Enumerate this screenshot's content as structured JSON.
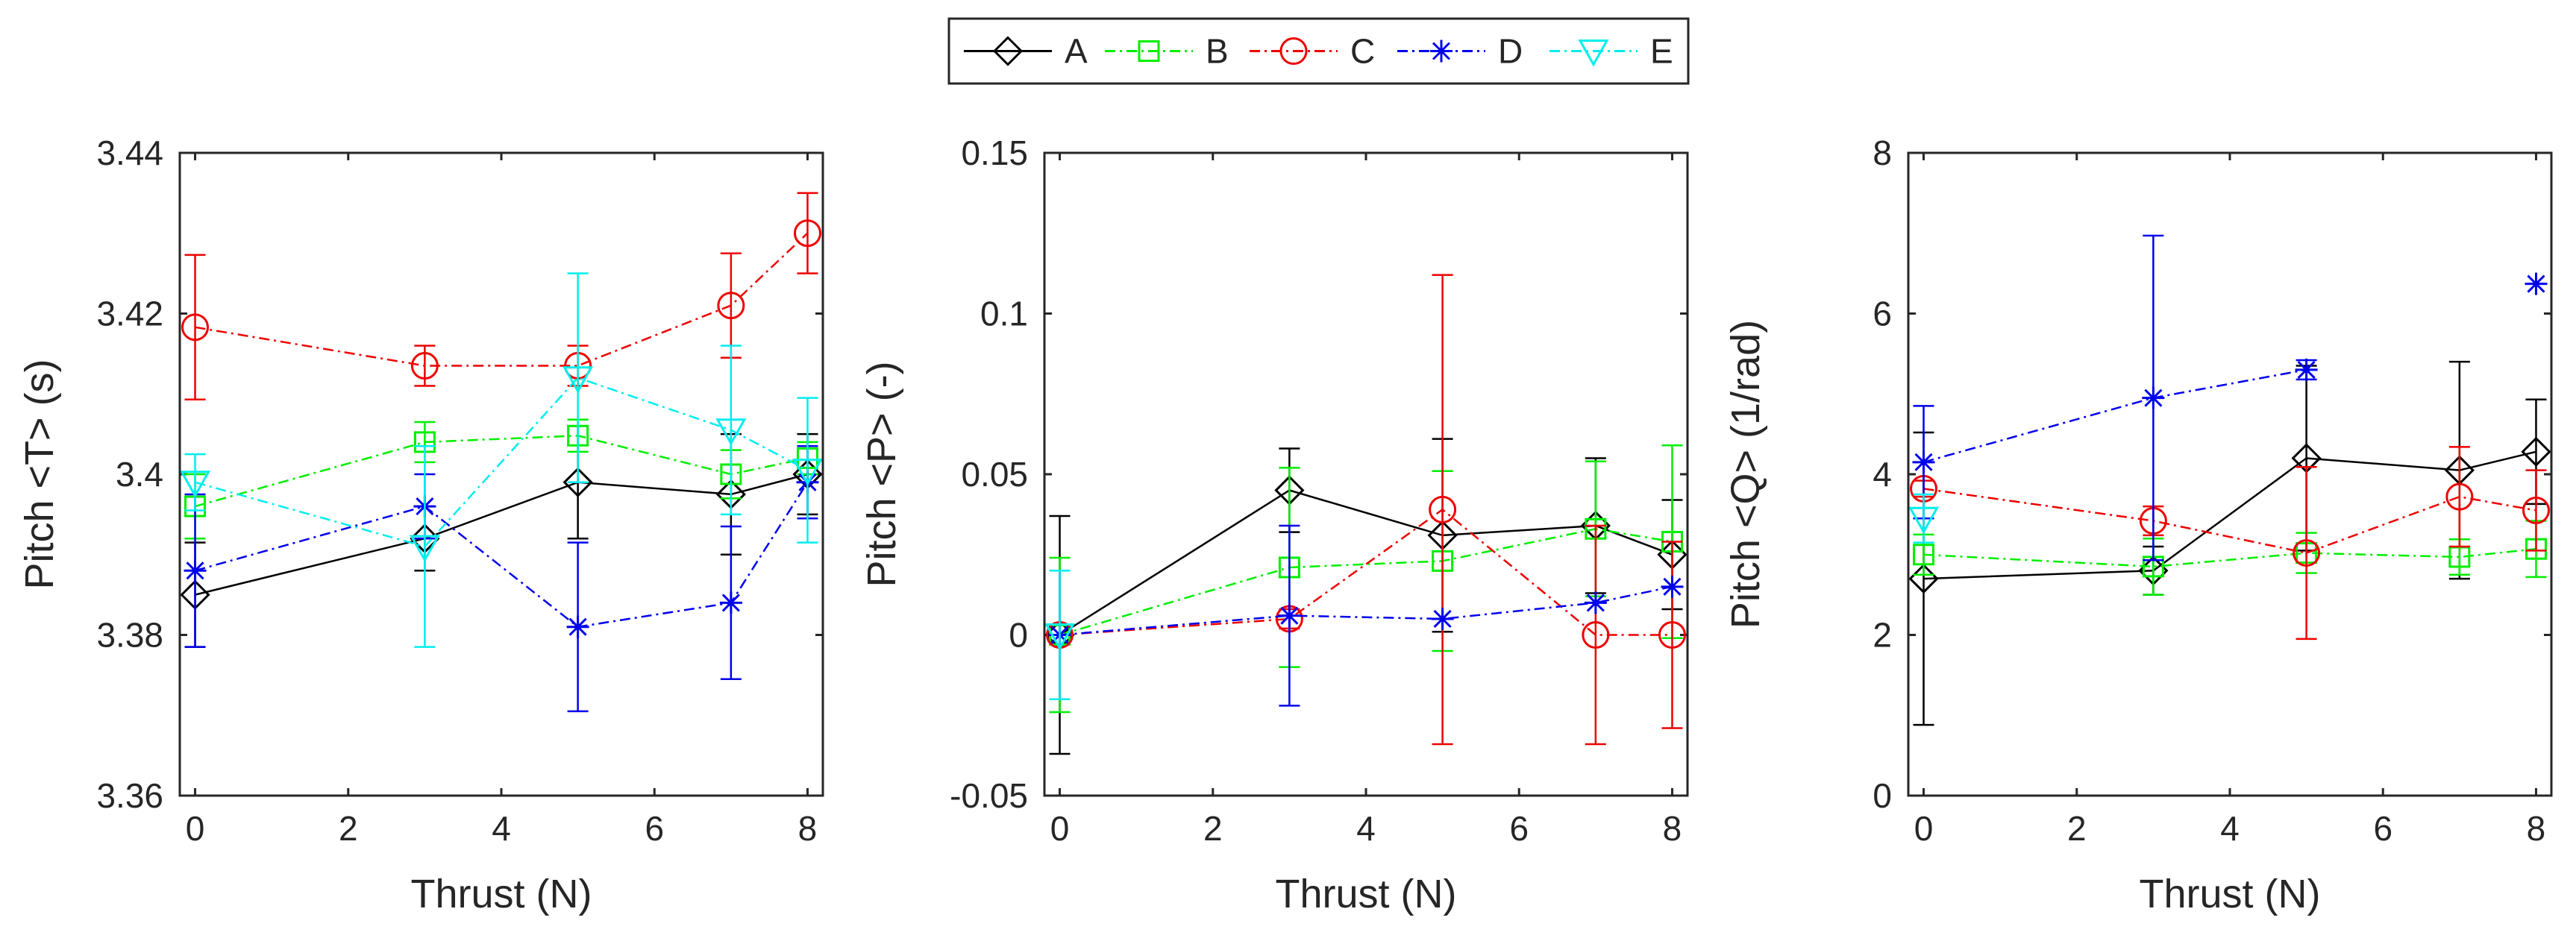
{
  "legend": {
    "entries": [
      {
        "name": "A",
        "color": "#000000",
        "marker": "diamond",
        "dash": "solid"
      },
      {
        "name": "B",
        "color": "#00ee00",
        "marker": "square",
        "dash": "dashdot"
      },
      {
        "name": "C",
        "color": "#ee0000",
        "marker": "circle",
        "dash": "dashdot"
      },
      {
        "name": "D",
        "color": "#0000ee",
        "marker": "asterisk",
        "dash": "dashdot"
      },
      {
        "name": "E",
        "color": "#00eeee",
        "marker": "triangle-down",
        "dash": "dashdot"
      }
    ]
  },
  "chart_data": [
    {
      "type": "line",
      "title": "",
      "xlabel": "Thrust (N)",
      "ylabel": "Pitch <T> (s)",
      "xlim": [
        -0.2,
        8.2
      ],
      "ylim": [
        3.36,
        3.44
      ],
      "xticks": [
        "0",
        "2",
        "4",
        "6",
        "8"
      ],
      "yticks": [
        "3.36",
        "3.38",
        "3.4",
        "3.42",
        "3.44"
      ],
      "series": [
        {
          "name": "A",
          "x": [
            0,
            3,
            5,
            7,
            8
          ],
          "values": [
            3.385,
            3.392,
            3.399,
            3.3975,
            3.4
          ],
          "err": [
            0.0065,
            0.004,
            0.007,
            0.0075,
            0.005
          ]
        },
        {
          "name": "B",
          "x": [
            0,
            3,
            5,
            7,
            8
          ],
          "values": [
            3.396,
            3.404,
            3.4048,
            3.4,
            3.402
          ],
          "err": [
            0.004,
            0.0025,
            0.002,
            0.003,
            0.002
          ]
        },
        {
          "name": "C",
          "x": [
            0,
            3,
            5,
            7,
            8
          ],
          "values": [
            3.4183,
            3.4135,
            3.4135,
            3.421,
            3.43
          ],
          "err": [
            0.009,
            0.0025,
            0.0025,
            0.0065,
            0.005
          ]
        },
        {
          "name": "D",
          "x": [
            0,
            3,
            5,
            7,
            8
          ],
          "values": [
            3.388,
            3.396,
            3.381,
            3.384,
            3.399
          ],
          "err": [
            0.0095,
            0.004,
            0.0105,
            0.0095,
            0.0045
          ]
        },
        {
          "name": "E",
          "x": [
            0,
            3,
            5,
            7,
            8
          ],
          "values": [
            3.399,
            3.391,
            3.412,
            3.4055,
            3.4005
          ],
          "err": [
            0.0035,
            0.0125,
            0.013,
            0.0105,
            0.009
          ]
        }
      ]
    },
    {
      "type": "line",
      "title": "",
      "xlabel": "Thrust (N)",
      "ylabel": "Pitch <P> (-)",
      "xlim": [
        -0.2,
        8.2
      ],
      "ylim": [
        -0.05,
        0.15
      ],
      "xticks": [
        "0",
        "2",
        "4",
        "6",
        "8"
      ],
      "yticks": [
        "-0.05",
        "0",
        "0.05",
        "0.1",
        "0.15"
      ],
      "series": [
        {
          "name": "A",
          "x": [
            0,
            3,
            5,
            7,
            8
          ],
          "values": [
            0,
            0.045,
            0.031,
            0.034,
            0.025
          ],
          "err": [
            0.037,
            0.013,
            0.03,
            0.021,
            0.017
          ]
        },
        {
          "name": "B",
          "x": [
            0,
            3,
            5,
            7,
            8
          ],
          "values": [
            0,
            0.021,
            0.023,
            0.033,
            0.029
          ],
          "err": [
            0.024,
            0.031,
            0.028,
            0.021,
            0.03
          ]
        },
        {
          "name": "C",
          "x": [
            0,
            3,
            5,
            7,
            8
          ],
          "values": [
            0,
            0.005,
            0.039,
            0,
            0
          ],
          "err": [
            0,
            0.003,
            0.073,
            0.034,
            0.029
          ]
        },
        {
          "name": "D",
          "x": [
            0,
            3,
            5,
            7,
            8
          ],
          "values": [
            0,
            0.006,
            0.005,
            0.01,
            0.015
          ],
          "err": [
            0.02,
            0.028,
            0,
            0,
            0
          ]
        },
        {
          "name": "E",
          "x": [
            0
          ],
          "values": [
            0
          ],
          "err": [
            0.02
          ]
        }
      ]
    },
    {
      "type": "line",
      "title": "",
      "xlabel": "Thrust (N)",
      "ylabel": "Pitch <Q> (1/rad)",
      "xlim": [
        -0.2,
        8.2
      ],
      "ylim": [
        0,
        8
      ],
      "xticks": [
        "0",
        "2",
        "4",
        "6",
        "8"
      ],
      "yticks": [
        "0",
        "2",
        "4",
        "6",
        "8"
      ],
      "series": [
        {
          "name": "A",
          "x": [
            0,
            3,
            5,
            7,
            8
          ],
          "values": [
            2.7,
            2.8,
            4.2,
            4.05,
            4.28
          ],
          "err": [
            1.82,
            0.3,
            1.15,
            1.35,
            0.65
          ]
        },
        {
          "name": "B",
          "x": [
            0,
            3,
            5,
            7,
            8
          ],
          "values": [
            3.0,
            2.85,
            3.02,
            2.97,
            3.07
          ],
          "err": [
            0.25,
            0.35,
            0.25,
            0.22,
            0.35
          ]
        },
        {
          "name": "C",
          "x": [
            0,
            3,
            5,
            7,
            8
          ],
          "values": [
            3.82,
            3.42,
            3.02,
            3.72,
            3.55
          ],
          "err": [
            0.1,
            0.18,
            1.07,
            0.62,
            0.5
          ]
        },
        {
          "name": "D",
          "x": [
            0,
            3,
            5,
            7,
            8
          ],
          "values": [
            4.15,
            4.95,
            5.3,
            null,
            6.37
          ],
          "err": [
            0.7,
            2.02,
            0.12,
            0,
            0
          ]
        },
        {
          "name": "E",
          "x": [
            0
          ],
          "values": [
            3.45
          ],
          "err": [
            0.3
          ]
        }
      ]
    }
  ]
}
